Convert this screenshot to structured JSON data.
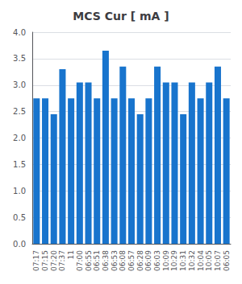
{
  "chart_data": {
    "type": "bar",
    "title": "MCS Cur [ mA ]",
    "categories": [
      "07:17",
      "07:15",
      "07:20",
      "07:37",
      "11",
      "07:00",
      "06:55",
      "06:51",
      "06:38",
      "06:53",
      "06:08",
      "06:57",
      "06:28",
      "06:09",
      "06:03",
      "10:09",
      "10:29",
      "10:31",
      "10:32",
      "10:04",
      "10:05",
      "10:07",
      "06:05"
    ],
    "values": [
      2.75,
      2.75,
      2.45,
      3.3,
      2.75,
      3.05,
      3.05,
      2.75,
      3.65,
      2.75,
      3.35,
      2.75,
      2.45,
      2.75,
      3.35,
      3.05,
      3.05,
      2.45,
      3.05,
      2.75,
      3.05,
      3.35,
      2.75
    ],
    "color": "#1874cd",
    "ylim": [
      0.0,
      4.0
    ],
    "yticks": [
      {
        "value": 0,
        "label": "0.0"
      },
      0.5,
      {
        "value": 1,
        "label": "1.0"
      },
      1.5,
      {
        "value": 2,
        "label": "2.0"
      },
      2.5,
      {
        "value": 3,
        "label": "3.0"
      },
      3.5,
      {
        "value": 4,
        "label": "4.0"
      }
    ],
    "grid": true
  }
}
